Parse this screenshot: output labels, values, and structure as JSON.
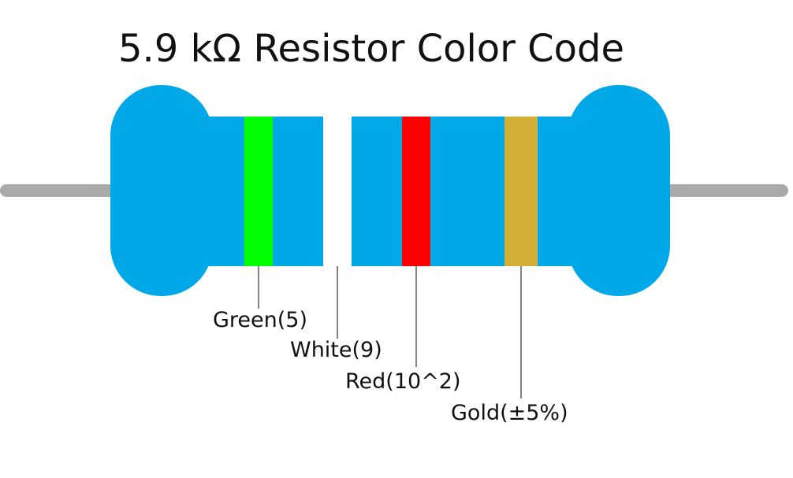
{
  "title": "5.9 kΩ Resistor Color Code",
  "colors": {
    "body": "#00a8e8",
    "lead": "#aaaaaa",
    "leader_line": "#333333"
  },
  "bands": [
    {
      "name": "Green",
      "label": "Green(5)",
      "color": "#00ff00"
    },
    {
      "name": "White",
      "label": "White(9)",
      "color": "#ffffff"
    },
    {
      "name": "Red",
      "label": "Red(10^2)",
      "color": "#ff0000"
    },
    {
      "name": "Gold",
      "label": "Gold(±5%)",
      "color": "#d4af37"
    }
  ]
}
